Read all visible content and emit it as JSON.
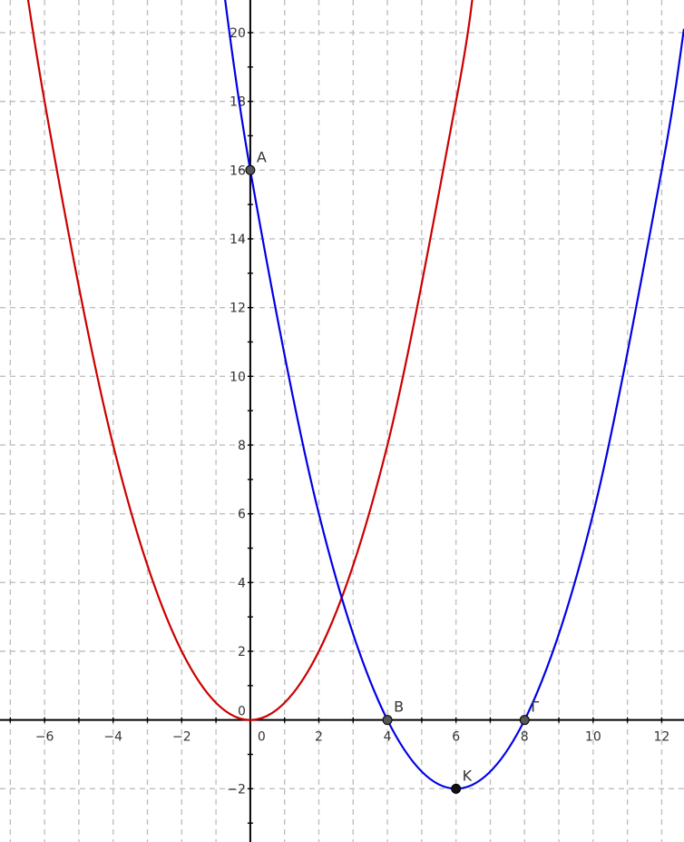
{
  "chart_data": {
    "type": "line",
    "title": "",
    "xlabel": "",
    "ylabel": "",
    "xlim": [
      -7.3,
      12.65
    ],
    "ylim": [
      -3.55,
      20.95
    ],
    "grid": true,
    "x_ticks": [
      -6,
      -4,
      -2,
      0,
      2,
      4,
      6,
      8,
      10,
      12
    ],
    "x_tick_labels": [
      "−6",
      "−4",
      "−2",
      "0",
      "2",
      "4",
      "6",
      "8",
      "10",
      "12"
    ],
    "y_ticks": [
      -2,
      2,
      4,
      6,
      8,
      10,
      12,
      14,
      16,
      18,
      20
    ],
    "y_tick_labels": [
      "−2",
      "2",
      "4",
      "6",
      "8",
      "10",
      "12",
      "14",
      "16",
      "18",
      "20"
    ],
    "origin_label": "0",
    "series": [
      {
        "color": "#cc0000",
        "points": [
          [
            -7.3,
            26.65
          ],
          [
            -6,
            18
          ],
          [
            -4,
            8
          ],
          [
            -2,
            2
          ],
          [
            0,
            0
          ],
          [
            2,
            2
          ],
          [
            4,
            8
          ],
          [
            6,
            18
          ],
          [
            6.5,
            21.13
          ]
        ]
      },
      {
        "color": "#0000e6",
        "points": [
          [
            -1,
            23.0
          ],
          [
            0,
            16
          ],
          [
            2,
            6
          ],
          [
            4,
            0
          ],
          [
            6,
            -2
          ],
          [
            8,
            0
          ],
          [
            10,
            6
          ],
          [
            12,
            16
          ],
          [
            12.65,
            20.11
          ]
        ]
      }
    ],
    "points": [
      {
        "label": "A",
        "x": 0,
        "y": 16,
        "color": "#555555"
      },
      {
        "label": "B",
        "x": 4,
        "y": 0,
        "color": "#555555"
      },
      {
        "label": "Γ",
        "x": 8,
        "y": 0,
        "color": "#555555"
      },
      {
        "label": "K",
        "x": 6,
        "y": -2,
        "color": "#111111"
      }
    ]
  }
}
